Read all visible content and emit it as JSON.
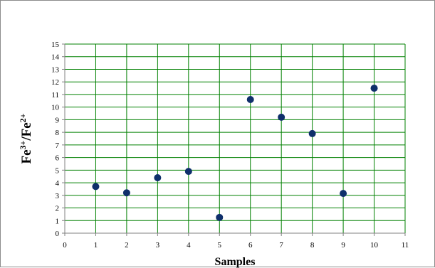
{
  "chart_data": {
    "type": "scatter",
    "title": "",
    "xlabel": "Samples",
    "ylabel": "Fe3+/Fe2+",
    "ylabel_parts": {
      "a": "Fe",
      "a_sup": "3+",
      "sep": "/Fe",
      "b_sup": "2+"
    },
    "xlim": [
      0,
      11
    ],
    "ylim": [
      0,
      15
    ],
    "x_ticks": [
      0,
      1,
      2,
      3,
      4,
      5,
      6,
      7,
      8,
      9,
      10,
      11
    ],
    "y_ticks": [
      0,
      1,
      2,
      3,
      4,
      5,
      6,
      7,
      8,
      9,
      10,
      11,
      12,
      13,
      14,
      15
    ],
    "grid": true,
    "legend": "none",
    "series": [
      {
        "x": [
          1,
          2,
          3,
          4,
          5,
          6,
          7,
          8,
          9,
          10
        ],
        "y": [
          3.7,
          3.2,
          4.4,
          4.9,
          1.25,
          10.6,
          9.2,
          7.9,
          3.15,
          11.5
        ]
      }
    ],
    "colors": {
      "plot_background": "#ffffff",
      "grid": "#008000",
      "marker": "#0f2f6b",
      "axis": "#808080"
    }
  }
}
